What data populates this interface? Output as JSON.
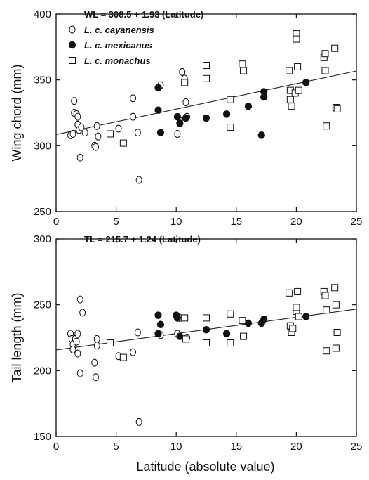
{
  "chart_data": [
    {
      "type": "scatter",
      "panel": "top",
      "ylabel": "Wing chord (mm)",
      "xlabel": "",
      "xlim": [
        0,
        25
      ],
      "ylim": [
        250,
        400
      ],
      "xticks": [
        0,
        5,
        10,
        15,
        20,
        25
      ],
      "yticks": [
        250,
        300,
        350,
        400
      ],
      "legend_placement": "top-left",
      "regression": {
        "label": "WL = 308.5 + 1.93 (Latitude)",
        "intercept": 308.5,
        "slope": 1.93
      },
      "series": [
        {
          "name": "L. c. cayanensis",
          "marker": "open-circle",
          "points": [
            [
              1.2,
              308
            ],
            [
              1.4,
              309
            ],
            [
              1.5,
              334
            ],
            [
              1.5,
              325
            ],
            [
              1.7,
              324
            ],
            [
              1.8,
              322
            ],
            [
              1.8,
              316
            ],
            [
              1.9,
              312
            ],
            [
              2.0,
              291
            ],
            [
              2.1,
              314
            ],
            [
              2.4,
              310
            ],
            [
              3.2,
              300
            ],
            [
              3.3,
              299
            ],
            [
              3.4,
              315
            ],
            [
              3.5,
              307
            ],
            [
              5.2,
              313
            ],
            [
              6.4,
              336
            ],
            [
              6.4,
              322
            ],
            [
              6.8,
              310
            ],
            [
              6.9,
              274
            ],
            [
              8.7,
              346
            ],
            [
              10.1,
              309
            ],
            [
              10.3,
              319
            ],
            [
              10.5,
              356
            ],
            [
              10.7,
              351
            ],
            [
              10.8,
              333
            ],
            [
              10.9,
              322
            ]
          ]
        },
        {
          "name": "L. c. mexicanus",
          "marker": "filled-circle",
          "points": [
            [
              8.5,
              344
            ],
            [
              8.5,
              327
            ],
            [
              8.7,
              310
            ],
            [
              10.1,
              322
            ],
            [
              10.3,
              317
            ],
            [
              10.8,
              321
            ],
            [
              12.5,
              321
            ],
            [
              14.2,
              324
            ],
            [
              16.0,
              330
            ],
            [
              17.1,
              308
            ],
            [
              17.3,
              341
            ],
            [
              17.3,
              337
            ],
            [
              20.8,
              348
            ]
          ]
        },
        {
          "name": "L. c. monachus",
          "marker": "open-square",
          "points": [
            [
              4.5,
              309
            ],
            [
              5.6,
              302
            ],
            [
              10.7,
              348
            ],
            [
              12.5,
              361
            ],
            [
              12.5,
              351
            ],
            [
              14.5,
              335
            ],
            [
              14.5,
              314
            ],
            [
              15.5,
              362
            ],
            [
              15.6,
              357
            ],
            [
              19.4,
              357
            ],
            [
              19.5,
              342
            ],
            [
              19.5,
              335
            ],
            [
              19.6,
              330
            ],
            [
              19.9,
              340
            ],
            [
              20.0,
              385
            ],
            [
              20.0,
              381
            ],
            [
              20.1,
              360
            ],
            [
              20.2,
              342
            ],
            [
              22.3,
              367
            ],
            [
              22.4,
              370
            ],
            [
              22.4,
              357
            ],
            [
              22.5,
              315
            ],
            [
              23.2,
              374
            ],
            [
              23.3,
              329
            ],
            [
              23.4,
              328
            ]
          ]
        }
      ]
    },
    {
      "type": "scatter",
      "panel": "bottom",
      "ylabel": "Tail length (mm)",
      "xlabel": "Latitude (absolute value)",
      "xlim": [
        0,
        25
      ],
      "ylim": [
        150,
        300
      ],
      "xticks": [
        0,
        5,
        10,
        15,
        20,
        25
      ],
      "yticks": [
        150,
        200,
        250,
        300
      ],
      "legend_placement": "top-left",
      "regression": {
        "label": "TL = 215.7 + 1.24 (Latitude)",
        "intercept": 215.7,
        "slope": 1.24
      },
      "series": [
        {
          "name": "L. c. cayanensis",
          "marker": "open-circle",
          "points": [
            [
              1.2,
              228
            ],
            [
              1.3,
              224
            ],
            [
              1.4,
              220
            ],
            [
              1.4,
              216
            ],
            [
              1.6,
              224
            ],
            [
              1.7,
              222
            ],
            [
              1.8,
              228
            ],
            [
              1.8,
              213
            ],
            [
              2.0,
              254
            ],
            [
              2.0,
              198
            ],
            [
              2.2,
              244
            ],
            [
              3.2,
              206
            ],
            [
              3.3,
              195
            ],
            [
              3.4,
              224
            ],
            [
              3.4,
              219
            ],
            [
              5.2,
              211
            ],
            [
              6.4,
              214
            ],
            [
              6.8,
              229
            ],
            [
              6.9,
              161
            ],
            [
              8.7,
              227
            ],
            [
              10.1,
              228
            ],
            [
              10.3,
              240
            ],
            [
              10.9,
              225
            ]
          ]
        },
        {
          "name": "L. c. mexicanus",
          "marker": "filled-circle",
          "points": [
            [
              8.5,
              242
            ],
            [
              8.5,
              228
            ],
            [
              8.7,
              235
            ],
            [
              10.0,
              242
            ],
            [
              10.1,
              240
            ],
            [
              10.3,
              226
            ],
            [
              12.5,
              231
            ],
            [
              14.2,
              228
            ],
            [
              16.0,
              236
            ],
            [
              17.1,
              236
            ],
            [
              17.3,
              239
            ],
            [
              20.8,
              241
            ]
          ]
        },
        {
          "name": "L. c. monachus",
          "marker": "open-square",
          "points": [
            [
              4.5,
              221
            ],
            [
              5.6,
              210
            ],
            [
              10.7,
              240
            ],
            [
              10.8,
              224
            ],
            [
              12.5,
              240
            ],
            [
              12.5,
              221
            ],
            [
              14.5,
              243
            ],
            [
              14.5,
              221
            ],
            [
              15.5,
              238
            ],
            [
              15.6,
              226
            ],
            [
              19.4,
              259
            ],
            [
              19.5,
              234
            ],
            [
              19.6,
              229
            ],
            [
              19.7,
              232
            ],
            [
              20.0,
              245
            ],
            [
              20.0,
              248
            ],
            [
              20.1,
              260
            ],
            [
              20.2,
              241
            ],
            [
              22.3,
              260
            ],
            [
              22.4,
              257
            ],
            [
              22.5,
              246
            ],
            [
              22.5,
              215
            ],
            [
              23.2,
              263
            ],
            [
              23.3,
              250
            ],
            [
              23.4,
              229
            ],
            [
              23.3,
              217
            ]
          ]
        }
      ]
    }
  ]
}
